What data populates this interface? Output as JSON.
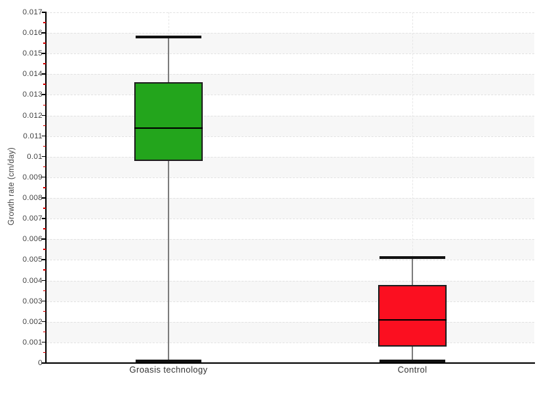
{
  "chart_data": {
    "type": "boxplot",
    "title": "",
    "xlabel": "",
    "ylabel": "Growth rate (cm/day)",
    "ylim": [
      0,
      0.017
    ],
    "y_major_step": 0.001,
    "y_minor_step": 0.0005,
    "y_tick_labels": [
      "0",
      "0.001",
      "0.002",
      "0.003",
      "0.004",
      "0.005",
      "0.006",
      "0.007",
      "0.008",
      "0.009",
      "0.01",
      "0.011",
      "0.012",
      "0.013",
      "0.014",
      "0.015",
      "0.016",
      "0.017"
    ],
    "grid": "horizontal dashed gridlines at each major tick, vertical dashed line at each category center, alternating shaded bands",
    "legend": "none",
    "categories": [
      "Groasis technology",
      "Control"
    ],
    "series": [
      {
        "name": "Groasis technology",
        "color": "#23a51c",
        "whisker_low": 0.0001,
        "q1": 0.0098,
        "median": 0.0114,
        "q3": 0.0136,
        "whisker_high": 0.0158
      },
      {
        "name": "Control",
        "color": "#fb0f20",
        "whisker_low": 0.0001,
        "q1": 0.0008,
        "median": 0.0021,
        "q3": 0.0038,
        "whisker_high": 0.0051
      }
    ],
    "colors": {
      "band": "#f7f7f7",
      "gridline": "#e2e2e2",
      "axis": "#000000",
      "whisker": "#7d7d7d",
      "cap": "#111111",
      "box_border": "#1f1f1f",
      "median": "#000000",
      "tick_label": "#3f3f3f",
      "minor_tick": "#d40000"
    }
  }
}
